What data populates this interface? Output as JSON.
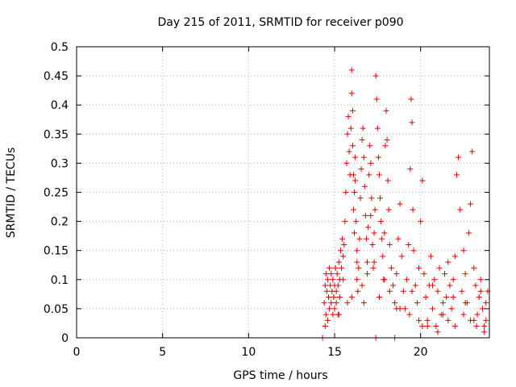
{
  "chart_data": {
    "type": "scatter",
    "title": "Day 215 of 2011, SRMTID for receiver p090",
    "xlabel": "GPS time / hours",
    "ylabel": "SRMTID / TECUs",
    "xlim": [
      0,
      24
    ],
    "ylim": [
      0,
      0.5
    ],
    "xticks": [
      0,
      5,
      10,
      15,
      20
    ],
    "xtick_labels": [
      "0",
      "5",
      "10",
      "15",
      "20"
    ],
    "yticks": [
      0,
      0.05,
      0.1,
      0.15,
      0.2,
      0.25,
      0.3,
      0.35,
      0.4,
      0.45,
      0.5
    ],
    "ytick_labels": [
      "0",
      "0.05",
      "0.1",
      "0.15",
      "0.2",
      "0.25",
      "0.3",
      "0.35",
      "0.4",
      "0.45",
      "0.5"
    ],
    "grid": true,
    "marker": "+",
    "colors": {
      "series": "#e00000",
      "grid": "#b0b0b0",
      "axis": "#000000"
    },
    "series": [
      {
        "name": "SRMTID",
        "x": [
          14.4,
          14.45,
          14.5,
          14.5,
          14.55,
          14.6,
          14.6,
          14.65,
          14.7,
          14.7,
          14.75,
          14.8,
          14.8,
          14.85,
          14.9,
          14.9,
          14.95,
          15.0,
          15.0,
          15.05,
          15.1,
          15.1,
          15.15,
          15.2,
          15.2,
          15.25,
          15.3,
          15.3,
          15.35,
          15.4,
          15.45,
          15.5,
          15.5,
          15.55,
          15.6,
          15.65,
          15.7,
          15.75,
          15.8,
          15.85,
          15.9,
          15.95,
          16.0,
          16.0,
          16.05,
          16.05,
          16.1,
          16.1,
          16.15,
          16.15,
          16.2,
          16.2,
          16.25,
          16.3,
          16.3,
          16.35,
          16.4,
          16.45,
          16.5,
          16.55,
          16.6,
          16.65,
          16.7,
          16.75,
          16.8,
          16.85,
          16.9,
          16.95,
          17.0,
          17.05,
          17.1,
          17.15,
          17.2,
          17.25,
          17.3,
          17.35,
          17.4,
          17.45,
          17.5,
          17.55,
          17.6,
          17.65,
          17.7,
          17.75,
          17.8,
          17.85,
          17.9,
          17.95,
          18.0,
          18.05,
          18.1,
          18.15,
          18.2,
          18.3,
          18.4,
          18.5,
          18.6,
          18.7,
          18.8,
          18.9,
          19.0,
          19.1,
          19.2,
          19.3,
          19.4,
          19.45,
          19.5,
          19.55,
          19.6,
          19.7,
          19.8,
          19.9,
          20.0,
          20.1,
          20.2,
          20.3,
          20.4,
          20.5,
          20.6,
          20.7,
          20.8,
          20.9,
          21.0,
          21.1,
          21.2,
          21.3,
          21.4,
          21.5,
          21.6,
          21.7,
          21.8,
          21.9,
          22.0,
          22.1,
          22.2,
          22.3,
          22.4,
          22.5,
          22.6,
          22.7,
          22.8,
          22.9,
          23.0,
          23.1,
          23.2,
          23.3,
          23.4,
          23.5,
          23.6,
          23.7,
          23.8,
          23.9,
          14.3,
          17.4,
          18.5,
          14.45,
          15.25,
          15.75,
          16.0,
          16.6,
          16.9,
          17.3,
          17.6,
          18.2,
          18.8,
          19.35,
          19.9,
          20.4,
          21.0,
          21.6,
          22.0,
          22.5,
          22.9,
          23.25,
          23.7,
          16.3,
          16.7,
          17.1,
          17.9,
          18.6,
          19.5,
          20.1,
          20.7,
          21.3,
          21.9,
          22.6,
          23.1,
          23.5,
          23.8
        ],
        "y": [
          0.06,
          0.09,
          0.11,
          0.04,
          0.08,
          0.1,
          0.03,
          0.07,
          0.12,
          0.05,
          0.09,
          0.06,
          0.11,
          0.08,
          0.04,
          0.1,
          0.07,
          0.09,
          0.05,
          0.12,
          0.08,
          0.06,
          0.11,
          0.09,
          0.04,
          0.13,
          0.1,
          0.07,
          0.15,
          0.12,
          0.17,
          0.14,
          0.1,
          0.16,
          0.2,
          0.25,
          0.3,
          0.35,
          0.38,
          0.32,
          0.28,
          0.36,
          0.46,
          0.42,
          0.39,
          0.33,
          0.28,
          0.22,
          0.18,
          0.25,
          0.31,
          0.27,
          0.2,
          0.15,
          0.1,
          0.08,
          0.12,
          0.17,
          0.24,
          0.29,
          0.34,
          0.36,
          0.31,
          0.26,
          0.21,
          0.17,
          0.13,
          0.19,
          0.28,
          0.33,
          0.3,
          0.24,
          0.16,
          0.12,
          0.18,
          0.22,
          0.45,
          0.41,
          0.36,
          0.31,
          0.28,
          0.24,
          0.2,
          0.17,
          0.14,
          0.1,
          0.18,
          0.33,
          0.39,
          0.34,
          0.27,
          0.22,
          0.16,
          0.12,
          0.09,
          0.06,
          0.11,
          0.17,
          0.23,
          0.14,
          0.08,
          0.05,
          0.1,
          0.16,
          0.29,
          0.41,
          0.37,
          0.22,
          0.15,
          0.09,
          0.06,
          0.12,
          0.2,
          0.27,
          0.11,
          0.07,
          0.03,
          0.09,
          0.14,
          0.05,
          0.1,
          0.02,
          0.08,
          0.12,
          0.04,
          0.06,
          0.11,
          0.07,
          0.13,
          0.09,
          0.05,
          0.1,
          0.14,
          0.28,
          0.31,
          0.22,
          0.08,
          0.15,
          0.11,
          0.06,
          0.18,
          0.23,
          0.32,
          0.12,
          0.09,
          0.04,
          0.07,
          0.1,
          0.05,
          0.02,
          0.06,
          0.08,
          0.0,
          0.0,
          0.0,
          0.02,
          0.04,
          0.06,
          0.07,
          0.09,
          0.11,
          0.13,
          0.07,
          0.08,
          0.05,
          0.04,
          0.03,
          0.02,
          0.01,
          0.03,
          0.02,
          0.04,
          0.03,
          0.02,
          0.01,
          0.13,
          0.06,
          0.21,
          0.1,
          0.05,
          0.08,
          0.02,
          0.09,
          0.04,
          0.07,
          0.06,
          0.03,
          0.08,
          0.03
        ]
      }
    ]
  }
}
